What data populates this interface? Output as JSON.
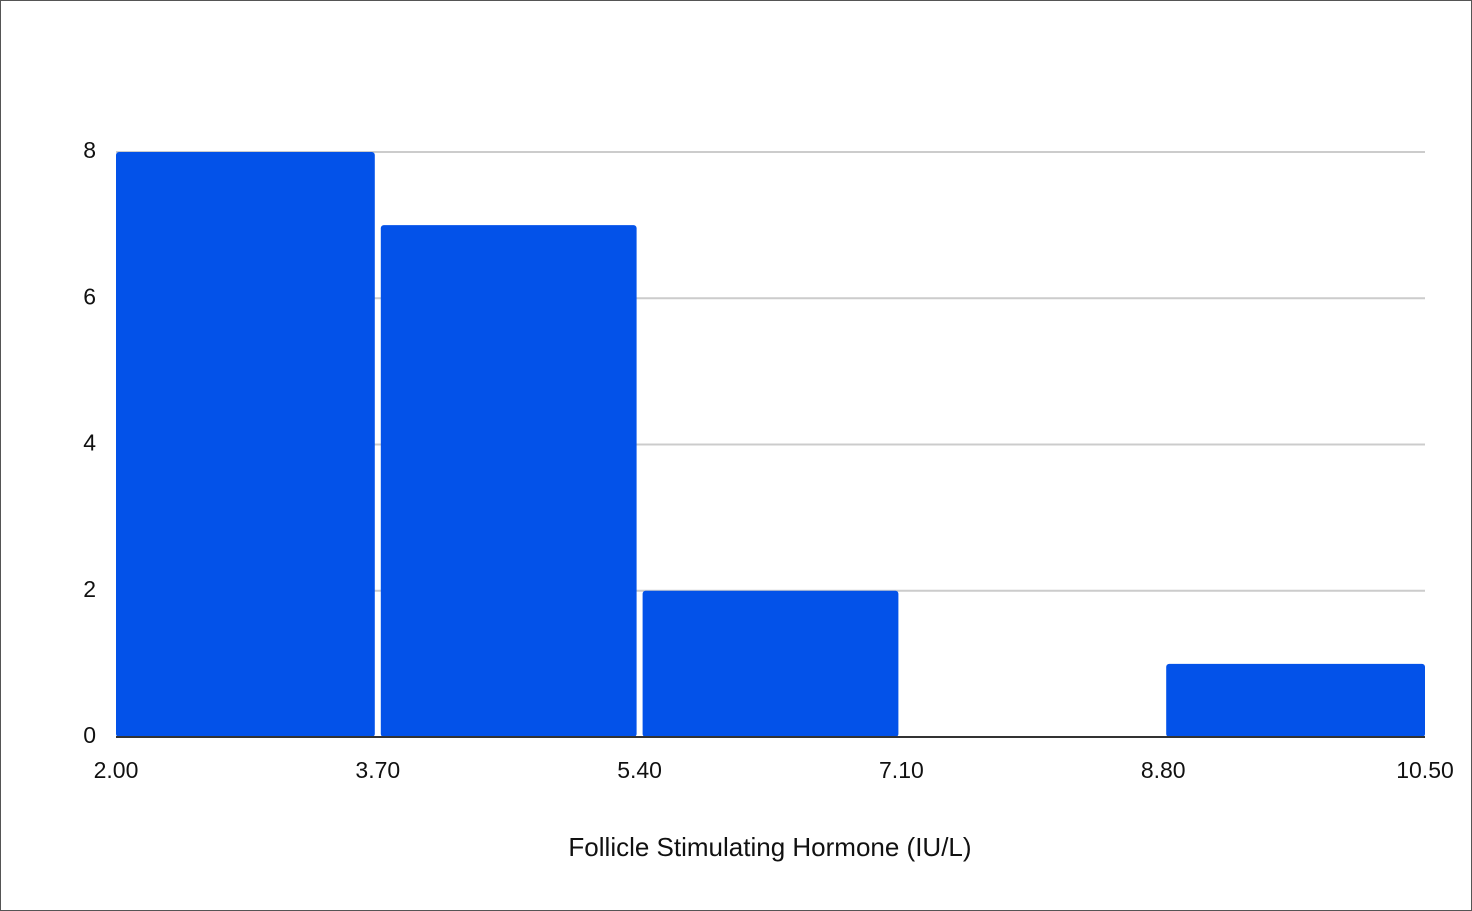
{
  "chart_data": {
    "type": "histogram",
    "x_label": "Follicle Stimulating Hormone (IU/L)",
    "bins": [
      2,
      3.7,
      5.4,
      7.1,
      8.8,
      10.5
    ],
    "values": [
      8,
      7,
      2,
      0,
      1
    ],
    "color": "#0352e9",
    "xlim": [
      2,
      10.5
    ],
    "xticks": [
      {
        "value": 2,
        "label": "2.00"
      },
      {
        "value": 3.7,
        "label": "3.70"
      },
      {
        "value": 5.4,
        "label": "5.40"
      },
      {
        "value": 7.1,
        "label": "7.10"
      },
      {
        "value": 8.8,
        "label": "8.80"
      },
      {
        "value": 10.5,
        "label": "10.50"
      }
    ],
    "ylim": [
      0,
      8
    ],
    "yticks": [
      0,
      2,
      4,
      6,
      8
    ],
    "grid": true
  }
}
